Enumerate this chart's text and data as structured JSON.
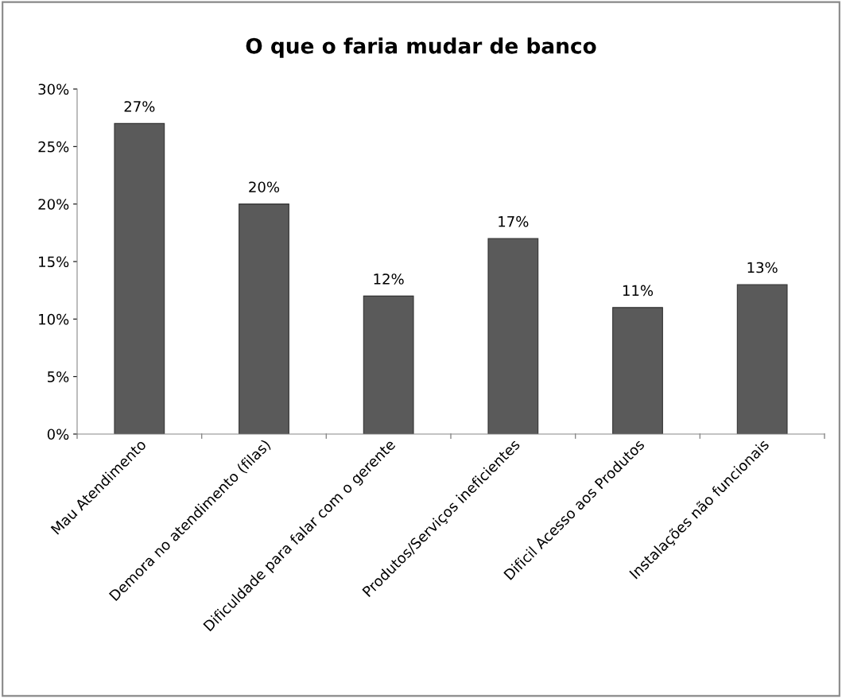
{
  "chart_data": {
    "type": "bar",
    "title": "O que o faria mudar de banco",
    "categories": [
      "Mau Atendimento",
      "Demora no atendimento (filas)",
      "Dificuldade para falar com o gerente",
      "Produtos/Serviços ineficientes",
      "Dificil Acesso aos Produtos",
      "Instalações não funcionais"
    ],
    "values": [
      27,
      20,
      12,
      17,
      11,
      13
    ],
    "value_labels": [
      "27%",
      "20%",
      "12%",
      "17%",
      "11%",
      "13%"
    ],
    "color": "#5a5a5a",
    "ylim": [
      0,
      30
    ],
    "yticks": [
      {
        "value": 0,
        "label": "0%"
      },
      {
        "value": 5,
        "label": "5%"
      },
      {
        "value": 10,
        "label": "10%"
      },
      {
        "value": 15,
        "label": "15%"
      },
      {
        "value": 20,
        "label": "20%"
      },
      {
        "value": 25,
        "label": "25%"
      },
      {
        "value": 30,
        "label": "30%"
      }
    ],
    "grid": false
  }
}
